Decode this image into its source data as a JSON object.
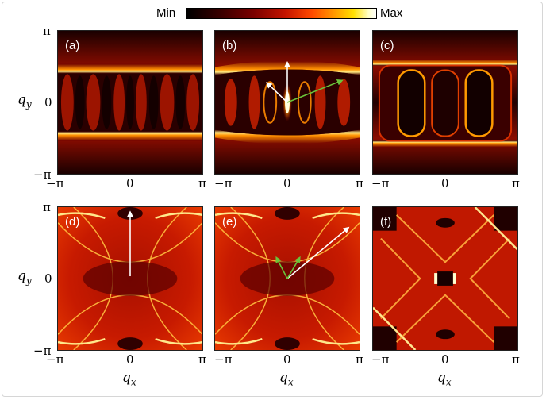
{
  "colorbar": {
    "min_label": "Min",
    "max_label": "Max"
  },
  "panels": [
    {
      "id": "a",
      "label": "(a)"
    },
    {
      "id": "b",
      "label": "(b)"
    },
    {
      "id": "c",
      "label": "(c)"
    },
    {
      "id": "d",
      "label": "(d)"
    },
    {
      "id": "e",
      "label": "(e)"
    },
    {
      "id": "f",
      "label": "(f)"
    }
  ],
  "ticks": {
    "pi": "π",
    "zero": "0",
    "neg_pi": "−π"
  },
  "axes": {
    "x_label": "q",
    "x_sub": "x",
    "y_label": "q",
    "y_sub": "y"
  },
  "colors": {
    "arrow_white": "#ffffff",
    "arrow_green": "#6ac33a",
    "low": "#000000",
    "mid": "#c41400",
    "high": "#ffe000"
  }
}
